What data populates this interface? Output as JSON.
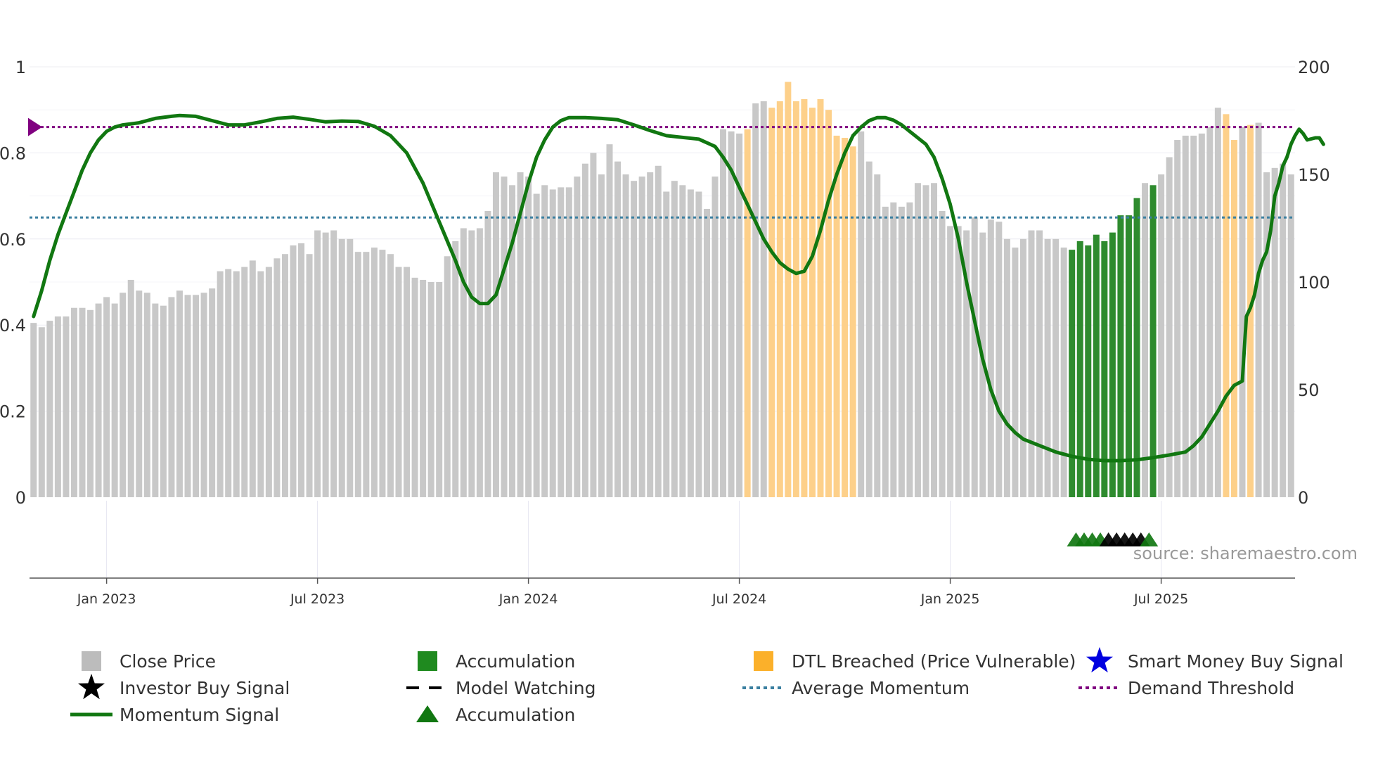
{
  "chart_data": {
    "type": "bar+line",
    "source": "source: sharemaestro.com",
    "left_axis": {
      "range": [
        0,
        1
      ],
      "ticks": [
        {
          "v": 0,
          "label": "0"
        },
        {
          "v": 0.2,
          "label": "0.2"
        },
        {
          "v": 0.4,
          "label": "0.4"
        },
        {
          "v": 0.6,
          "label": "0.6"
        },
        {
          "v": 0.8,
          "label": "0.8"
        },
        {
          "v": 1,
          "label": "1"
        }
      ]
    },
    "right_axis": {
      "range": [
        0,
        200
      ],
      "ticks": [
        {
          "v": 0,
          "label": "0"
        },
        {
          "v": 50,
          "label": "50"
        },
        {
          "v": 100,
          "label": "100"
        },
        {
          "v": 150,
          "label": "150"
        },
        {
          "v": 200,
          "label": "200"
        }
      ]
    },
    "x_ticks": [
      {
        "week": 9,
        "label": "Jan 2023"
      },
      {
        "week": 35,
        "label": "Jul 2023"
      },
      {
        "week": 61,
        "label": "Jan 2024"
      },
      {
        "week": 87,
        "label": "Jul 2024"
      },
      {
        "week": 113,
        "label": "Jan 2025"
      },
      {
        "week": 139,
        "label": "Jul 2025"
      }
    ],
    "average_momentum": 0.65,
    "demand_threshold": 0.86,
    "close_prices": [
      81,
      79,
      82,
      84,
      84,
      88,
      88,
      87,
      90,
      93,
      90,
      95,
      101,
      96,
      95,
      90,
      89,
      93,
      96,
      94,
      94,
      95,
      97,
      105,
      106,
      105,
      107,
      110,
      105,
      107,
      111,
      113,
      117,
      118,
      113,
      124,
      123,
      124,
      120,
      120,
      114,
      114,
      116,
      115,
      113,
      107,
      107,
      102,
      101,
      100,
      100,
      112,
      119,
      125,
      124,
      125,
      133,
      151,
      149,
      145,
      151,
      149,
      141,
      145,
      143,
      144,
      144,
      149,
      155,
      160,
      150,
      164,
      156,
      150,
      147,
      149,
      151,
      154,
      142,
      147,
      145,
      143,
      142,
      134,
      149,
      171,
      170,
      169,
      171,
      183,
      184,
      181,
      184,
      193,
      184,
      185,
      181,
      185,
      180,
      168,
      167,
      163,
      170,
      156,
      150,
      135,
      137,
      135,
      137,
      146,
      145,
      146,
      133,
      126,
      126,
      124,
      130,
      123,
      129,
      128,
      120,
      116,
      120,
      124,
      124,
      120,
      120,
      116,
      115,
      119,
      117,
      122,
      119,
      123,
      131,
      131,
      139,
      146,
      145,
      150,
      158,
      166,
      168,
      168,
      169,
      172,
      181,
      178,
      166,
      172,
      173,
      174,
      151,
      153,
      155,
      150
    ],
    "bar_states": [
      {
        "from": 88,
        "to": 88,
        "state": "dtl"
      },
      {
        "from": 91,
        "to": 101,
        "state": "dtl"
      },
      {
        "from": 128,
        "to": 136,
        "state": "accumulation"
      },
      {
        "from": 138,
        "to": 138,
        "state": "accumulation"
      },
      {
        "from": 147,
        "to": 148,
        "state": "dtl"
      },
      {
        "from": 150,
        "to": 150,
        "state": "dtl"
      }
    ],
    "momentum": [
      [
        0,
        0.42
      ],
      [
        1,
        0.48
      ],
      [
        2,
        0.55
      ],
      [
        3,
        0.61
      ],
      [
        4,
        0.66
      ],
      [
        5,
        0.71
      ],
      [
        6,
        0.76
      ],
      [
        7,
        0.8
      ],
      [
        8,
        0.83
      ],
      [
        9,
        0.85
      ],
      [
        10,
        0.86
      ],
      [
        11,
        0.865
      ],
      [
        13,
        0.87
      ],
      [
        15,
        0.88
      ],
      [
        17,
        0.885
      ],
      [
        18,
        0.887
      ],
      [
        20,
        0.885
      ],
      [
        22,
        0.875
      ],
      [
        24,
        0.865
      ],
      [
        26,
        0.865
      ],
      [
        28,
        0.872
      ],
      [
        30,
        0.88
      ],
      [
        32,
        0.883
      ],
      [
        34,
        0.878
      ],
      [
        36,
        0.872
      ],
      [
        38,
        0.874
      ],
      [
        40,
        0.873
      ],
      [
        42,
        0.862
      ],
      [
        44,
        0.84
      ],
      [
        46,
        0.8
      ],
      [
        48,
        0.73
      ],
      [
        50,
        0.64
      ],
      [
        52,
        0.55
      ],
      [
        53,
        0.5
      ],
      [
        54,
        0.465
      ],
      [
        55,
        0.45
      ],
      [
        56,
        0.45
      ],
      [
        57,
        0.47
      ],
      [
        58,
        0.53
      ],
      [
        59,
        0.59
      ],
      [
        60,
        0.66
      ],
      [
        61,
        0.73
      ],
      [
        62,
        0.79
      ],
      [
        63,
        0.83
      ],
      [
        64,
        0.86
      ],
      [
        65,
        0.875
      ],
      [
        66,
        0.882
      ],
      [
        68,
        0.882
      ],
      [
        70,
        0.88
      ],
      [
        72,
        0.877
      ],
      [
        74,
        0.865
      ],
      [
        76,
        0.852
      ],
      [
        78,
        0.84
      ],
      [
        80,
        0.836
      ],
      [
        82,
        0.832
      ],
      [
        84,
        0.815
      ],
      [
        85,
        0.79
      ],
      [
        86,
        0.76
      ],
      [
        87,
        0.72
      ],
      [
        88,
        0.68
      ],
      [
        89,
        0.64
      ],
      [
        90,
        0.6
      ],
      [
        91,
        0.57
      ],
      [
        92,
        0.545
      ],
      [
        93,
        0.53
      ],
      [
        94,
        0.52
      ],
      [
        95,
        0.525
      ],
      [
        96,
        0.56
      ],
      [
        97,
        0.62
      ],
      [
        98,
        0.69
      ],
      [
        99,
        0.75
      ],
      [
        100,
        0.8
      ],
      [
        101,
        0.84
      ],
      [
        102,
        0.86
      ],
      [
        103,
        0.875
      ],
      [
        104,
        0.882
      ],
      [
        105,
        0.882
      ],
      [
        106,
        0.876
      ],
      [
        107,
        0.865
      ],
      [
        108,
        0.85
      ],
      [
        110,
        0.82
      ],
      [
        111,
        0.79
      ],
      [
        112,
        0.74
      ],
      [
        113,
        0.68
      ],
      [
        114,
        0.6
      ],
      [
        115,
        0.5
      ],
      [
        116,
        0.41
      ],
      [
        117,
        0.32
      ],
      [
        118,
        0.25
      ],
      [
        119,
        0.2
      ],
      [
        120,
        0.17
      ],
      [
        121,
        0.15
      ],
      [
        122,
        0.135
      ],
      [
        124,
        0.12
      ],
      [
        126,
        0.105
      ],
      [
        128,
        0.095
      ],
      [
        130,
        0.088
      ],
      [
        132,
        0.085
      ],
      [
        134,
        0.085
      ],
      [
        136,
        0.087
      ],
      [
        138,
        0.092
      ],
      [
        140,
        0.098
      ],
      [
        142,
        0.105
      ],
      [
        143,
        0.12
      ],
      [
        144,
        0.14
      ],
      [
        145,
        0.17
      ],
      [
        146,
        0.2
      ],
      [
        147,
        0.235
      ],
      [
        148,
        0.26
      ],
      [
        149,
        0.27
      ],
      [
        149.5,
        0.42
      ],
      [
        150,
        0.44
      ],
      [
        150.5,
        0.47
      ],
      [
        151,
        0.52
      ],
      [
        151.5,
        0.55
      ],
      [
        152,
        0.57
      ],
      [
        152.5,
        0.62
      ],
      [
        153,
        0.7
      ],
      [
        153.5,
        0.73
      ],
      [
        154,
        0.77
      ],
      [
        154.5,
        0.79
      ],
      [
        155,
        0.82
      ],
      [
        155.5,
        0.84
      ],
      [
        156,
        0.855
      ],
      [
        156.5,
        0.845
      ],
      [
        157,
        0.83
      ],
      [
        158,
        0.835
      ],
      [
        158.5,
        0.835
      ],
      [
        159,
        0.82
      ]
    ],
    "signals": [
      {
        "week": 128.5,
        "type": "accumulation"
      },
      {
        "week": 129.5,
        "type": "accumulation"
      },
      {
        "week": 130.5,
        "type": "accumulation"
      },
      {
        "week": 131.5,
        "type": "accumulation"
      },
      {
        "week": 132.5,
        "type": "model_watching"
      },
      {
        "week": 133.5,
        "type": "model_watching"
      },
      {
        "week": 134.5,
        "type": "model_watching"
      },
      {
        "week": 135.5,
        "type": "model_watching"
      },
      {
        "week": 136.5,
        "type": "model_watching"
      },
      {
        "week": 137.5,
        "type": "accumulation"
      }
    ],
    "legend": [
      {
        "key": "close",
        "label": "Close Price"
      },
      {
        "key": "accum_bar",
        "label": "Accumulation"
      },
      {
        "key": "dtl",
        "label": "DTL Breached (Price Vulnerable)"
      },
      {
        "key": "smart",
        "label": "Smart Money Buy Signal"
      },
      {
        "key": "investor",
        "label": "Investor Buy Signal"
      },
      {
        "key": "watching",
        "label": "Model Watching"
      },
      {
        "key": "avgmom",
        "label": "Average Momentum"
      },
      {
        "key": "demand",
        "label": "Demand Threshold"
      },
      {
        "key": "momentum",
        "label": "Momentum Signal"
      },
      {
        "key": "accum_tri",
        "label": "Accumulation"
      }
    ],
    "colors": {
      "close": "#c8c8c8",
      "accumulation": "#2e8b2e",
      "dtl": "#fdd08a",
      "momentum": "#117711",
      "avg_momentum": "#3a7fa0",
      "demand": "#800080",
      "smart": "#0000e0",
      "investor": "#000000",
      "accum_triangle": "#117711",
      "legend_close": "#bcbcbc",
      "legend_accum": "#1f8a1f",
      "legend_dtl": "#fbb02a"
    }
  }
}
